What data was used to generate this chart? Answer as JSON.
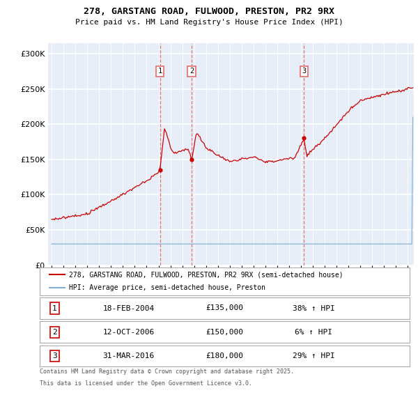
{
  "title_line1": "278, GARSTANG ROAD, FULWOOD, PRESTON, PR2 9RX",
  "title_line2": "Price paid vs. HM Land Registry's House Price Index (HPI)",
  "ytick_values": [
    0,
    50000,
    100000,
    150000,
    200000,
    250000,
    300000
  ],
  "ylim": [
    0,
    315000
  ],
  "xlim_start": 1994.7,
  "xlim_end": 2025.5,
  "transactions": [
    {
      "label": "1",
      "date": "18-FEB-2004",
      "price": 135000,
      "hpi_pct": "38%",
      "x_year": 2004.12
    },
    {
      "label": "2",
      "date": "12-OCT-2006",
      "price": 150000,
      "hpi_pct": "6%",
      "x_year": 2006.78
    },
    {
      "label": "3",
      "date": "31-MAR-2016",
      "price": 180000,
      "hpi_pct": "29%",
      "x_year": 2016.25
    }
  ],
  "legend_property_label": "278, GARSTANG ROAD, FULWOOD, PRESTON, PR2 9RX (semi-detached house)",
  "legend_hpi_label": "HPI: Average price, semi-detached house, Preston",
  "property_color": "#cc0000",
  "hpi_color": "#7bafd4",
  "footnote_line1": "Contains HM Land Registry data © Crown copyright and database right 2025.",
  "footnote_line2": "This data is licensed under the Open Government Licence v3.0.",
  "background_color": "#e8eef8",
  "grid_color": "#ffffff",
  "dashed_color": "#e06060"
}
